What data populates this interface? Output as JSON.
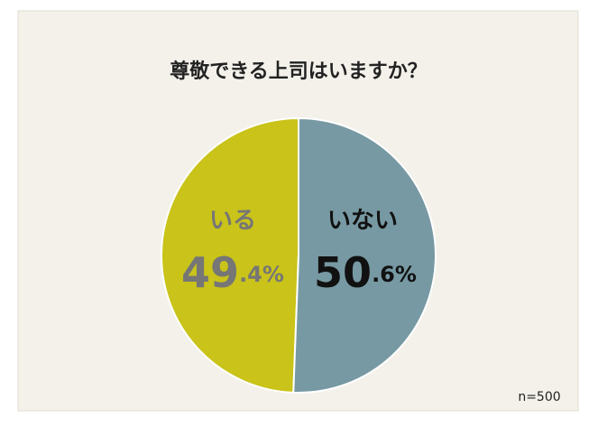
{
  "chart_data": {
    "type": "pie",
    "title": "尊敬できる上司はいますか？",
    "categories": [
      "いる",
      "いない"
    ],
    "values": [
      49.4,
      50.6
    ],
    "value_labels": [
      "49.4%",
      "50.6%"
    ],
    "colors": [
      "#c9c31a",
      "#7799a3"
    ],
    "label_colors": [
      "#767676",
      "#111111"
    ],
    "note": "n=500"
  }
}
